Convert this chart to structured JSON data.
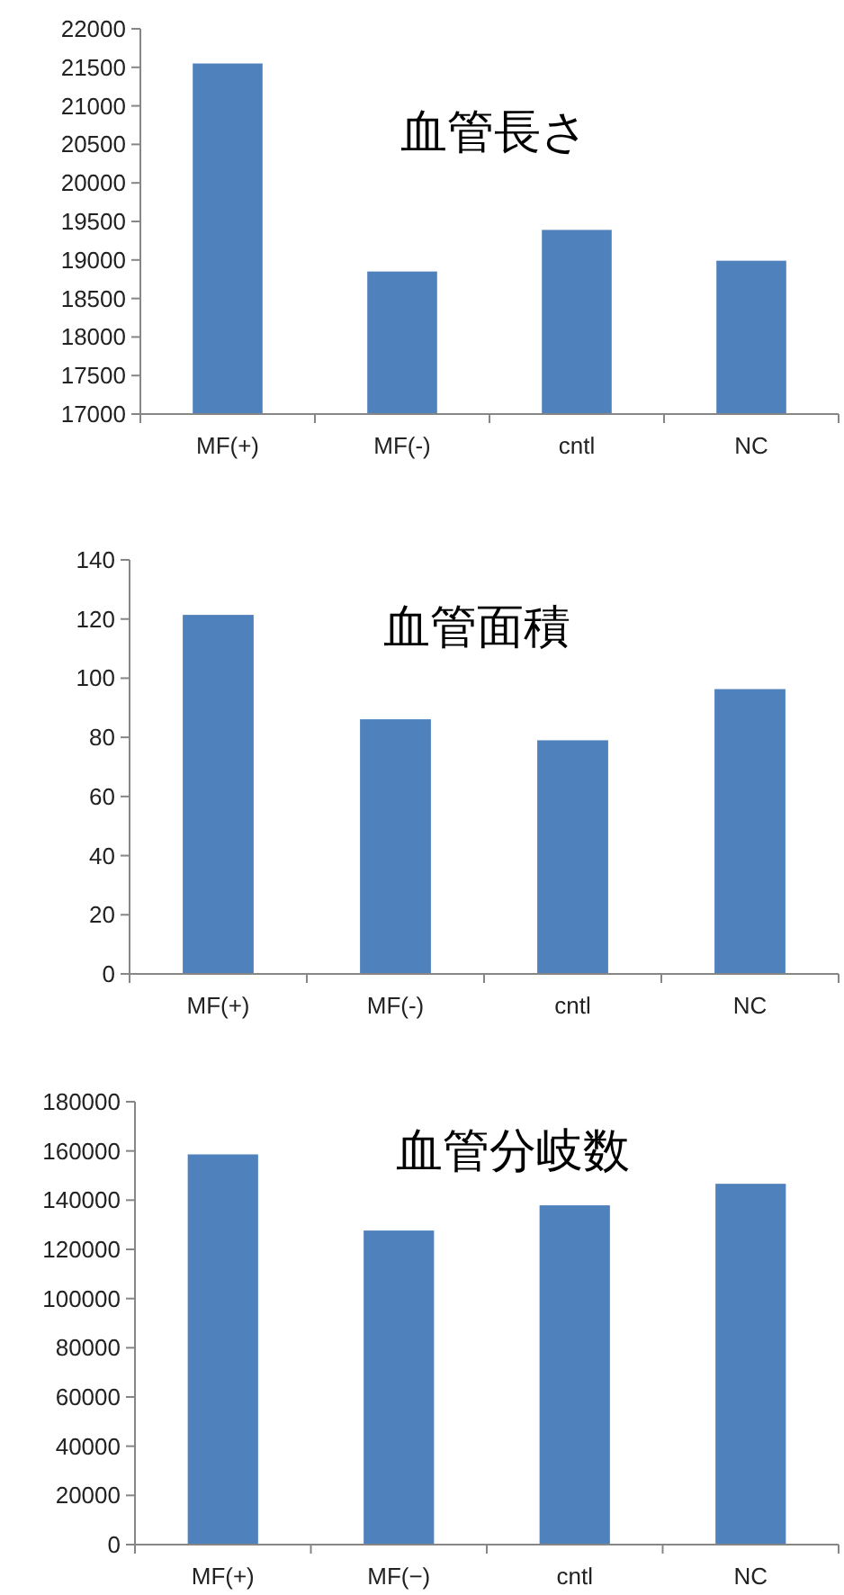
{
  "chart_data": [
    {
      "type": "bar",
      "title": "血管長さ",
      "categories": [
        "MF(+)",
        "MF(-)",
        "cntl",
        "NC"
      ],
      "values": [
        21550,
        18850,
        19390,
        18990
      ],
      "color": "#4f81bd",
      "ylim": [
        17000,
        22000
      ],
      "yticks": [
        17000,
        17500,
        18000,
        18500,
        19000,
        19500,
        20000,
        20500,
        21000,
        21500,
        22000
      ],
      "grid": false,
      "legend": false
    },
    {
      "type": "bar",
      "title": "血管面積",
      "categories": [
        "MF(+)",
        "MF(-)",
        "cntl",
        "NC"
      ],
      "values": [
        121.4,
        86.1,
        79.0,
        96.3
      ],
      "color": "#4f81bd",
      "ylim": [
        0,
        140
      ],
      "yticks": [
        0,
        20,
        40,
        60,
        80,
        100,
        120,
        140
      ],
      "grid": false,
      "legend": false
    },
    {
      "type": "bar",
      "title": "血管分岐数",
      "categories": [
        "MF(+)",
        "MF(−)",
        "cntl",
        "NC"
      ],
      "values": [
        158600,
        127650,
        137900,
        146650
      ],
      "color": "#4f81bd",
      "ylim": [
        0,
        180000
      ],
      "yticks": [
        0,
        20000,
        40000,
        60000,
        80000,
        100000,
        120000,
        140000,
        160000,
        180000
      ],
      "grid": false,
      "legend": false
    }
  ]
}
